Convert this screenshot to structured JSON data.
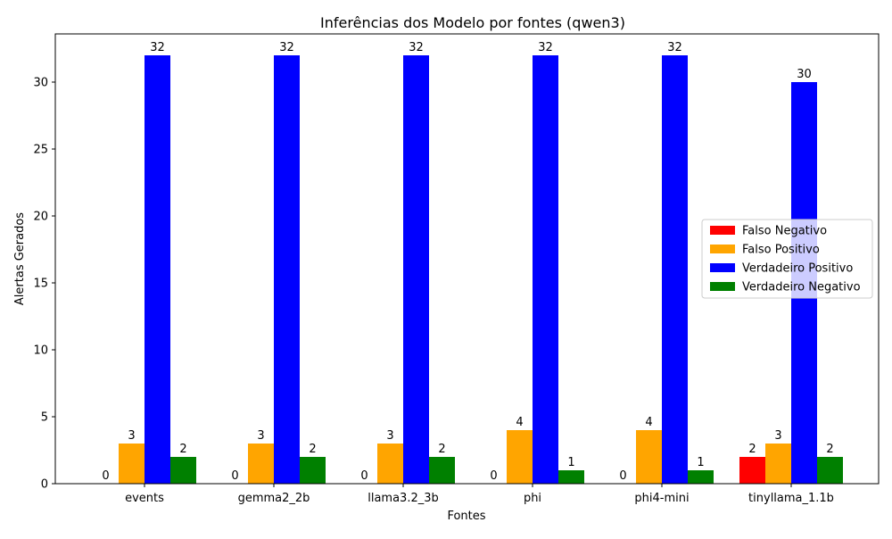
{
  "chart_data": {
    "type": "bar",
    "title": "Inferências dos Modelo por fontes (qwen3)",
    "xlabel": "Fontes",
    "ylabel": "Alertas Gerados",
    "categories": [
      "events",
      "gemma2_2b",
      "llama3.2_3b",
      "phi",
      "phi4-mini",
      "tinyllama_1.1b"
    ],
    "series": [
      {
        "name": "Falso Negativo",
        "color": "#ff0000",
        "values": [
          0,
          0,
          0,
          0,
          0,
          2
        ]
      },
      {
        "name": "Falso Positivo",
        "color": "#ffa500",
        "values": [
          3,
          3,
          3,
          4,
          4,
          3
        ]
      },
      {
        "name": "Verdadeiro Positivo",
        "color": "#0000ff",
        "values": [
          32,
          32,
          32,
          32,
          32,
          30
        ]
      },
      {
        "name": "Verdadeiro Negativo",
        "color": "#008000",
        "values": [
          2,
          2,
          2,
          1,
          1,
          2
        ]
      }
    ],
    "yticks": [
      0,
      5,
      10,
      15,
      20,
      25,
      30
    ],
    "ylim": [
      0,
      33.6
    ],
    "grid": false,
    "legend_position": "center-right",
    "data_labels": true
  }
}
